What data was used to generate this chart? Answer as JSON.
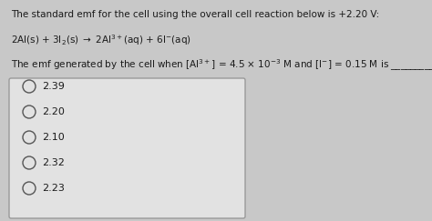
{
  "bg_color": "#c8c8c8",
  "text_color": "#1a1a1a",
  "line1": "The standard emf for the cell using the overall cell reaction below is +2.20 V:",
  "eq_text": "2Al(s) + 3I$_2$(s) $\\rightarrow$ 2Al$^{3+}$(aq) + 6I$^{-}$(aq)",
  "line3": "The emf generated by the cell when [Al$^{3+}$] = 4.5 $\\times$ 10$^{-3}$ M and [I$^{-}$] = 0.15 M is _________ V.",
  "options": [
    "2.39",
    "2.20",
    "2.10",
    "2.32",
    "2.23"
  ],
  "box_color": "#e2e2e2",
  "box_edge_color": "#999999",
  "font_size_main": 7.5,
  "font_size_options": 8.0,
  "circle_color": "#555555"
}
